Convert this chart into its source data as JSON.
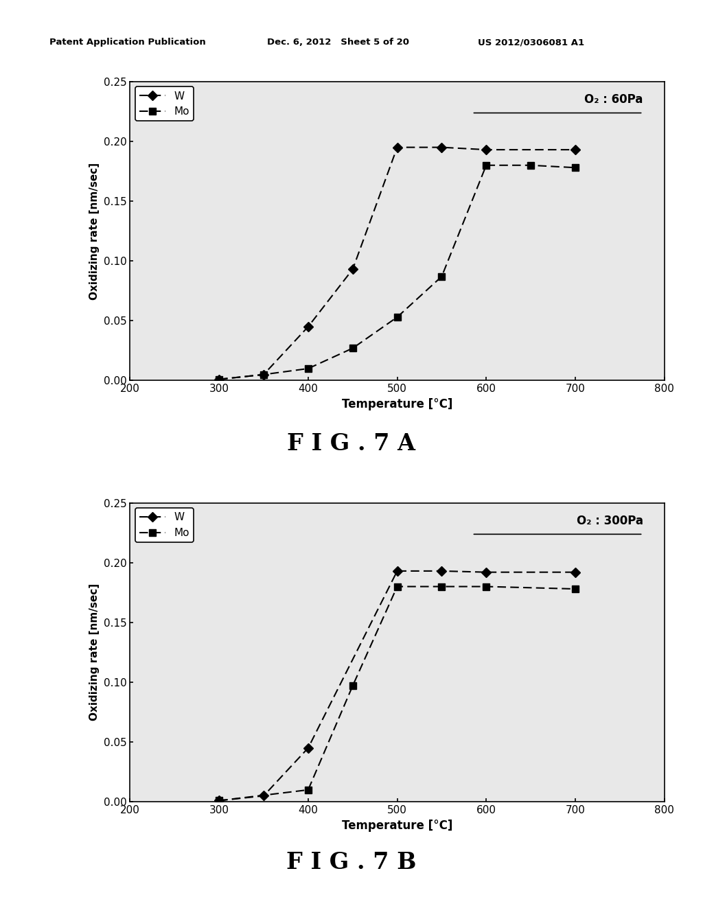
{
  "fig7a": {
    "label": "O₂ : 60Pa",
    "W_x": [
      300,
      350,
      400,
      450,
      500,
      550,
      600,
      700
    ],
    "W_y": [
      0.001,
      0.005,
      0.045,
      0.093,
      0.195,
      0.195,
      0.193,
      0.193
    ],
    "Mo_x": [
      300,
      350,
      400,
      450,
      500,
      550,
      600,
      650,
      700
    ],
    "Mo_y": [
      0.001,
      0.005,
      0.01,
      0.027,
      0.053,
      0.087,
      0.18,
      0.18,
      0.178
    ]
  },
  "fig7b": {
    "label": "O₂ : 300Pa",
    "W_x": [
      300,
      350,
      400,
      500,
      550,
      600,
      700
    ],
    "W_y": [
      0.001,
      0.005,
      0.045,
      0.193,
      0.193,
      0.192,
      0.192
    ],
    "Mo_x": [
      300,
      400,
      450,
      500,
      550,
      600,
      700
    ],
    "Mo_y": [
      0.001,
      0.01,
      0.097,
      0.18,
      0.18,
      0.18,
      0.178
    ]
  },
  "xlim": [
    200,
    800
  ],
  "ylim": [
    0,
    0.25
  ],
  "xticks": [
    200,
    300,
    400,
    500,
    600,
    700,
    800
  ],
  "yticks": [
    0,
    0.05,
    0.1,
    0.15,
    0.2,
    0.25
  ],
  "xlabel": "Temperature [°C]",
  "ylabel": "Oxidizing rate [nm/sec]",
  "fig7a_title": "F I G . 7 A",
  "fig7b_title": "F I G . 7 B",
  "header_left": "Patent Application Publication",
  "header_mid": "Dec. 6, 2012   Sheet 5 of 20",
  "header_right": "US 2012/0306081 A1",
  "line_color": "#000000",
  "bg_color": "#ffffff",
  "plot_bg": "#e8e8e8"
}
